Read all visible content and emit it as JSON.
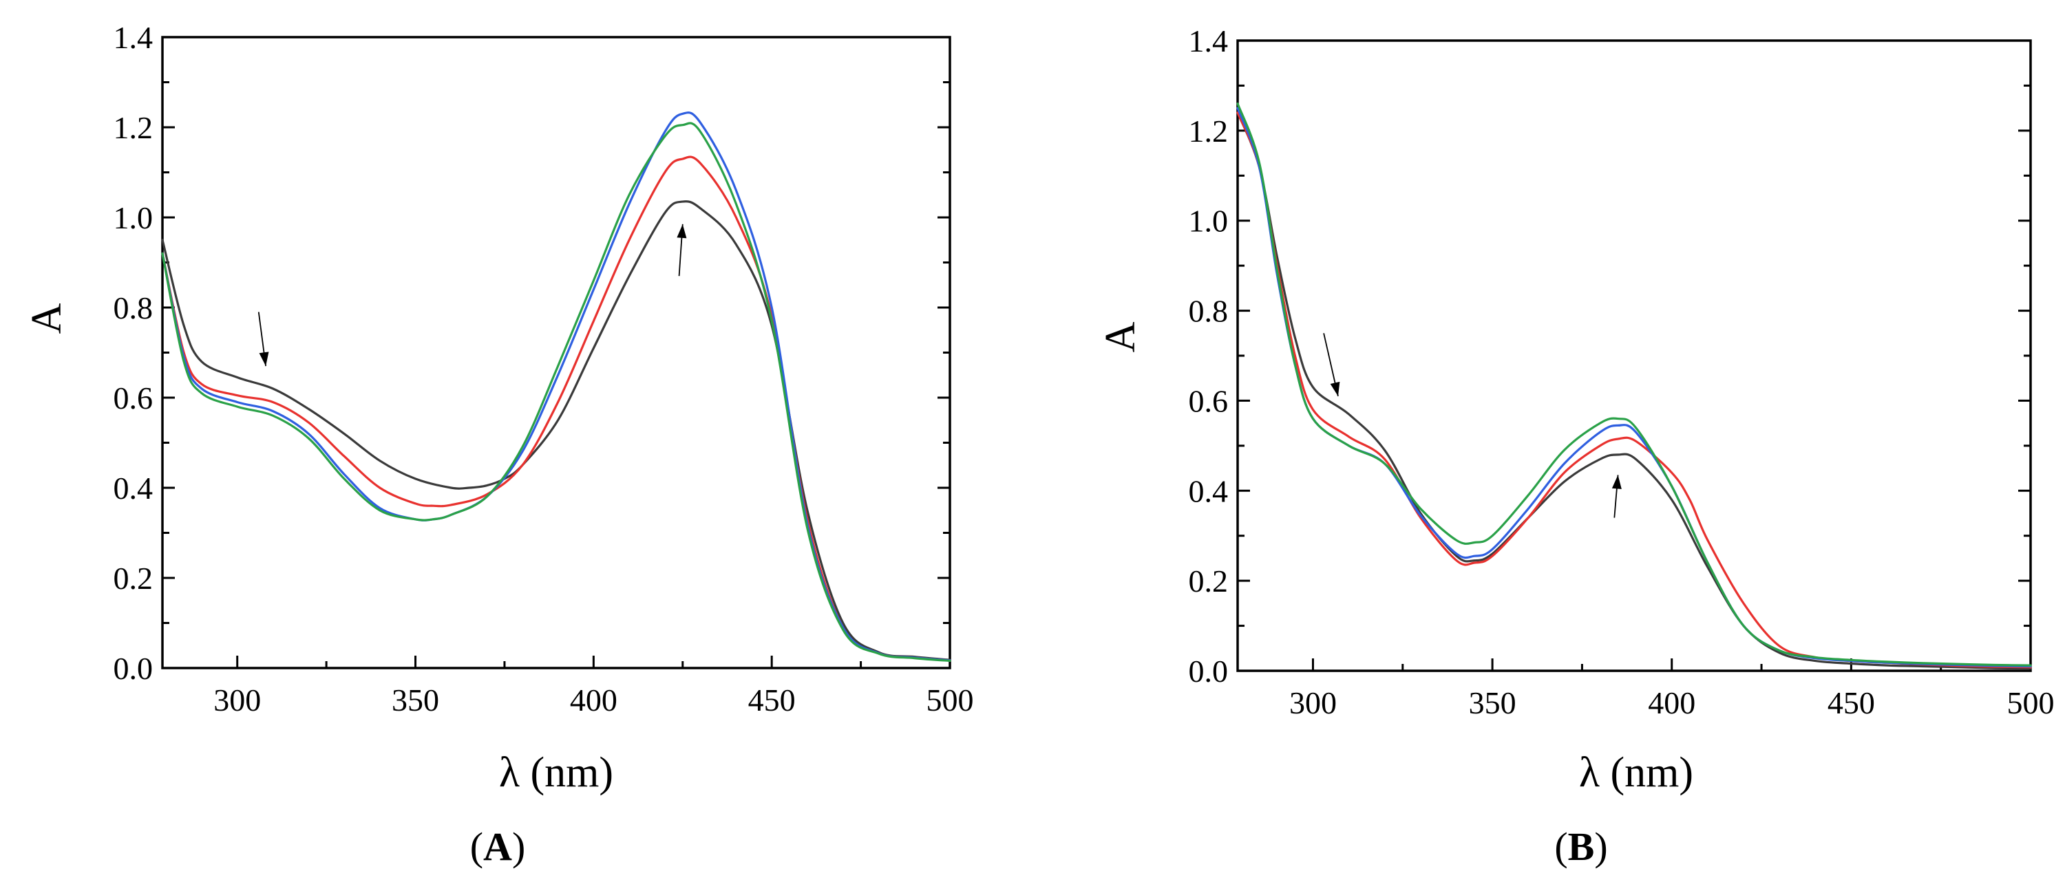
{
  "chart_data": [
    {
      "type": "line",
      "panel_label": "A",
      "xlabel": "λ (nm)",
      "ylabel": "A",
      "xlim": [
        279,
        500
      ],
      "ylim": [
        0,
        1.4
      ],
      "xticks": [
        300,
        350,
        400,
        450,
        500
      ],
      "yticks": [
        0.0,
        0.2,
        0.4,
        0.6,
        0.8,
        1.0,
        1.2,
        1.4
      ],
      "ytick_labels": [
        "0.0",
        "0.2",
        "0.4",
        "0.6",
        "0.8",
        "1.0",
        "1.2",
        "1.4"
      ],
      "series": [
        {
          "name": "black",
          "color": "#3a3a3a",
          "x": [
            279,
            285,
            290,
            300,
            310,
            320,
            330,
            340,
            350,
            360,
            365,
            370,
            375,
            380,
            390,
            400,
            410,
            420,
            425,
            430,
            440,
            450,
            460,
            470,
            480,
            490,
            500
          ],
          "y": [
            0.95,
            0.76,
            0.68,
            0.645,
            0.62,
            0.575,
            0.52,
            0.46,
            0.42,
            0.4,
            0.4,
            0.405,
            0.42,
            0.45,
            0.55,
            0.71,
            0.87,
            1.01,
            1.035,
            1.02,
            0.94,
            0.76,
            0.35,
            0.1,
            0.035,
            0.025,
            0.018
          ]
        },
        {
          "name": "red",
          "color": "#e8312e",
          "x": [
            279,
            285,
            290,
            300,
            310,
            320,
            330,
            340,
            350,
            355,
            360,
            370,
            380,
            390,
            400,
            410,
            420,
            425,
            430,
            440,
            450,
            460,
            470,
            480,
            490,
            500
          ],
          "y": [
            0.92,
            0.7,
            0.63,
            0.605,
            0.59,
            0.545,
            0.47,
            0.4,
            0.365,
            0.36,
            0.362,
            0.385,
            0.45,
            0.59,
            0.77,
            0.95,
            1.1,
            1.13,
            1.12,
            1.0,
            0.78,
            0.33,
            0.09,
            0.033,
            0.023,
            0.017
          ]
        },
        {
          "name": "blue",
          "color": "#2f5fe0",
          "x": [
            279,
            285,
            290,
            300,
            310,
            320,
            330,
            340,
            350,
            355,
            360,
            370,
            380,
            390,
            400,
            410,
            420,
            425,
            430,
            440,
            450,
            460,
            470,
            480,
            490,
            500
          ],
          "y": [
            0.92,
            0.69,
            0.62,
            0.59,
            0.57,
            0.52,
            0.43,
            0.355,
            0.33,
            0.33,
            0.34,
            0.38,
            0.48,
            0.65,
            0.84,
            1.03,
            1.19,
            1.23,
            1.21,
            1.06,
            0.8,
            0.32,
            0.09,
            0.033,
            0.023,
            0.017
          ]
        },
        {
          "name": "green",
          "color": "#2aa148",
          "x": [
            279,
            285,
            290,
            300,
            310,
            320,
            330,
            340,
            350,
            355,
            360,
            370,
            380,
            390,
            400,
            410,
            420,
            425,
            430,
            440,
            450,
            460,
            470,
            480,
            490,
            500
          ],
          "y": [
            0.92,
            0.68,
            0.61,
            0.58,
            0.56,
            0.51,
            0.42,
            0.35,
            0.33,
            0.33,
            0.34,
            0.38,
            0.49,
            0.67,
            0.86,
            1.05,
            1.18,
            1.205,
            1.19,
            1.03,
            0.77,
            0.31,
            0.085,
            0.032,
            0.022,
            0.016
          ]
        }
      ],
      "annotations": [
        {
          "type": "arrow",
          "direction": "down",
          "from": [
            306,
            0.79
          ],
          "to": [
            308,
            0.67
          ]
        },
        {
          "type": "arrow",
          "direction": "up",
          "from": [
            424,
            0.87
          ],
          "to": [
            425,
            0.985
          ]
        }
      ]
    },
    {
      "type": "line",
      "panel_label": "B",
      "xlabel": "λ (nm)",
      "ylabel": "A",
      "xlim": [
        279,
        500
      ],
      "ylim": [
        0,
        1.4
      ],
      "xticks": [
        300,
        350,
        400,
        450,
        500
      ],
      "yticks": [
        0.0,
        0.2,
        0.4,
        0.6,
        0.8,
        1.0,
        1.2,
        1.4
      ],
      "ytick_labels": [
        "0.0",
        "0.2",
        "0.4",
        "0.6",
        "0.8",
        "1.0",
        "1.2",
        "1.4"
      ],
      "series": [
        {
          "name": "black",
          "color": "#3a3a3a",
          "x": [
            279,
            285,
            290,
            295,
            300,
            310,
            320,
            330,
            340,
            345,
            350,
            360,
            370,
            380,
            385,
            390,
            400,
            410,
            420,
            430,
            440,
            450,
            460,
            470,
            480,
            490,
            500
          ],
          "y": [
            1.24,
            1.12,
            0.92,
            0.74,
            0.63,
            0.57,
            0.49,
            0.35,
            0.255,
            0.245,
            0.26,
            0.34,
            0.42,
            0.47,
            0.48,
            0.47,
            0.38,
            0.23,
            0.1,
            0.04,
            0.022,
            0.016,
            0.012,
            0.01,
            0.008,
            0.006,
            0.005
          ]
        },
        {
          "name": "red",
          "color": "#e8312e",
          "x": [
            279,
            285,
            290,
            295,
            300,
            310,
            320,
            330,
            340,
            345,
            350,
            360,
            370,
            380,
            385,
            390,
            400,
            405,
            410,
            420,
            430,
            440,
            450,
            460,
            470,
            480,
            490,
            500
          ],
          "y": [
            1.24,
            1.12,
            0.9,
            0.7,
            0.58,
            0.52,
            0.47,
            0.34,
            0.245,
            0.24,
            0.255,
            0.34,
            0.44,
            0.5,
            0.515,
            0.51,
            0.44,
            0.38,
            0.29,
            0.15,
            0.055,
            0.03,
            0.022,
            0.018,
            0.014,
            0.011,
            0.009,
            0.008
          ]
        },
        {
          "name": "blue",
          "color": "#2f5fe0",
          "x": [
            279,
            285,
            290,
            295,
            300,
            310,
            320,
            330,
            340,
            345,
            350,
            360,
            370,
            380,
            385,
            390,
            400,
            410,
            420,
            430,
            440,
            450,
            460,
            470,
            480,
            490,
            500
          ],
          "y": [
            1.25,
            1.12,
            0.88,
            0.68,
            0.56,
            0.5,
            0.46,
            0.345,
            0.26,
            0.255,
            0.27,
            0.36,
            0.46,
            0.53,
            0.545,
            0.53,
            0.41,
            0.24,
            0.1,
            0.045,
            0.028,
            0.022,
            0.018,
            0.015,
            0.013,
            0.011,
            0.01
          ]
        },
        {
          "name": "green",
          "color": "#2aa148",
          "x": [
            279,
            285,
            290,
            295,
            300,
            310,
            320,
            330,
            340,
            345,
            350,
            360,
            370,
            380,
            385,
            390,
            400,
            410,
            420,
            430,
            440,
            450,
            460,
            470,
            480,
            490,
            500
          ],
          "y": [
            1.26,
            1.13,
            0.89,
            0.68,
            0.56,
            0.5,
            0.46,
            0.36,
            0.29,
            0.285,
            0.3,
            0.39,
            0.49,
            0.55,
            0.56,
            0.54,
            0.41,
            0.24,
            0.1,
            0.045,
            0.03,
            0.024,
            0.02,
            0.017,
            0.015,
            0.013,
            0.012
          ]
        }
      ],
      "annotations": [
        {
          "type": "arrow",
          "direction": "down",
          "from": [
            303,
            0.75
          ],
          "to": [
            307,
            0.61
          ]
        },
        {
          "type": "arrow",
          "direction": "up",
          "from": [
            384,
            0.34
          ],
          "to": [
            385,
            0.435
          ]
        }
      ]
    }
  ]
}
